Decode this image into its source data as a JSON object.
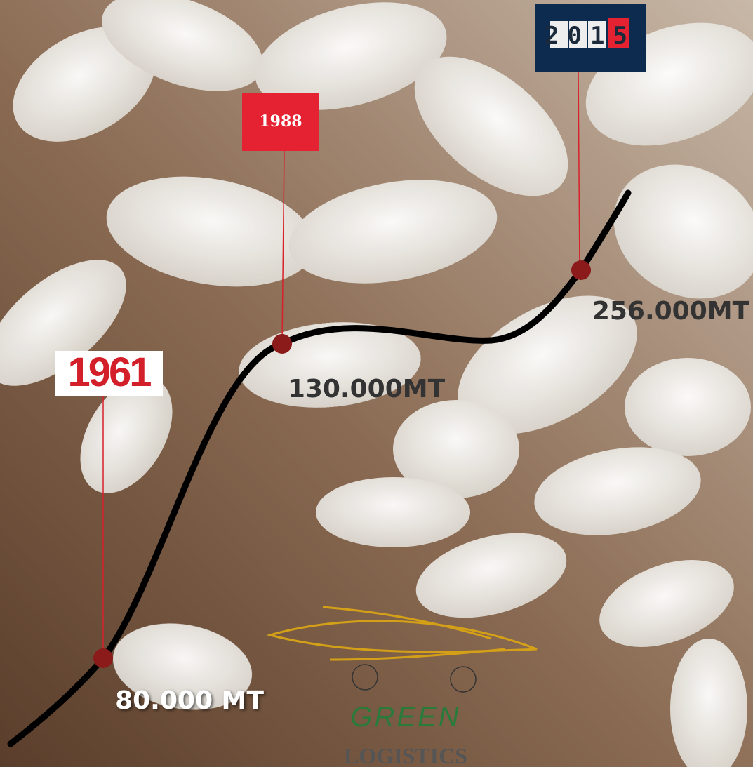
{
  "milestones": [
    {
      "year": "1961",
      "amount": "80.000 MT"
    },
    {
      "year": "1988",
      "amount": "130.000MT"
    },
    {
      "year": "2015",
      "amount": "256.000MT"
    }
  ],
  "logo": {
    "line1": "GREEN",
    "line2": "LOGISTICS"
  }
}
